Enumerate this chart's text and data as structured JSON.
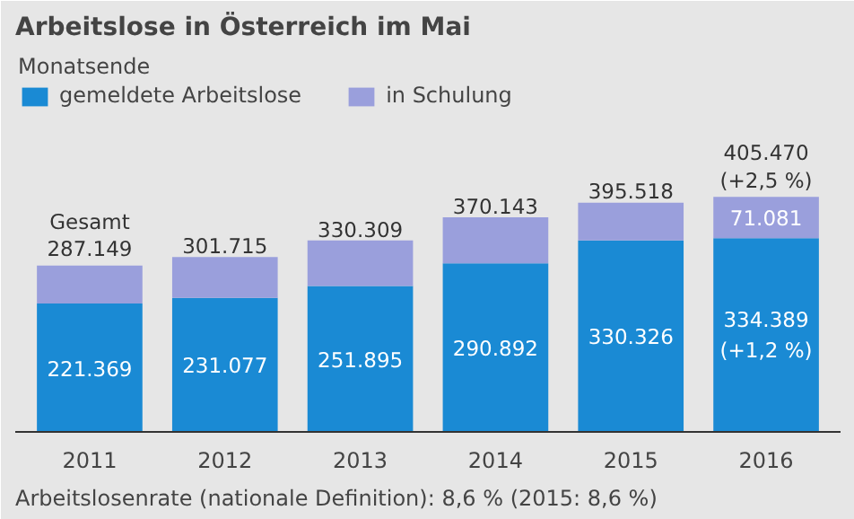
{
  "chart_data": {
    "type": "bar",
    "title": "Arbeitslose in Österreich im Mai",
    "legend_title": "Monatsende",
    "stacked": true,
    "legend": "top",
    "categories": [
      "2011",
      "2012",
      "2013",
      "2014",
      "2015",
      "2016"
    ],
    "series": [
      {
        "name": "gemeldete Arbeitslose",
        "color": "#1a8ad4",
        "values": [
          221369,
          231077,
          251895,
          290892,
          330326,
          334389
        ],
        "value_labels": [
          "221.369",
          "231.077",
          "251.895",
          "290.892",
          "330.326",
          "334.389\n(+1,2 %)"
        ]
      },
      {
        "name": "in Schulung",
        "color": "#9a9fdc",
        "values": [
          65780,
          70638,
          78414,
          79251,
          65192,
          71081
        ],
        "value_labels": [
          null,
          null,
          null,
          null,
          null,
          "71.081"
        ]
      }
    ],
    "totals": [
      "Gesamt\n287.149",
      "301.715",
      "330.309",
      "370.143",
      "395.518",
      "405.470\n(+2,5 %)"
    ],
    "annotations": [
      "Arbeitslosenrate (nationale Definition): 8,6 % (2015: 8,6 %)"
    ]
  }
}
